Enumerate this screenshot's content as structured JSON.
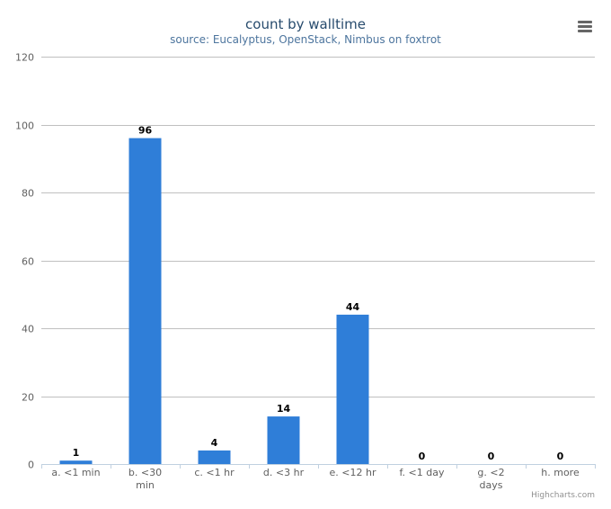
{
  "chart_data": {
    "type": "bar",
    "title": "count by walltime",
    "subtitle": "source: Eucalyptus, OpenStack, Nimbus on foxtrot",
    "categories": [
      "a. <1 min",
      "b. <30 min",
      "c. <1 hr",
      "d. <3 hr",
      "e. <12 hr",
      "f. <1 day",
      "g. <2 days",
      "h. more"
    ],
    "category_lines": [
      [
        "a. <1 min"
      ],
      [
        "b. <30",
        "min"
      ],
      [
        "c. <1 hr"
      ],
      [
        "d. <3 hr"
      ],
      [
        "e. <12 hr"
      ],
      [
        "f. <1 day"
      ],
      [
        "g. <2",
        "days"
      ],
      [
        "h. more"
      ]
    ],
    "values": [
      1,
      96,
      4,
      14,
      44,
      0,
      0,
      0
    ],
    "ylim": [
      0,
      120
    ],
    "yticks": [
      0,
      20,
      40,
      60,
      80,
      100,
      120
    ],
    "grid": true,
    "legend": "none",
    "xlabel": "",
    "ylabel": ""
  },
  "colors": {
    "bar": "#2f7ed8",
    "grid": "#c0c0c0",
    "axis": "#c0d0e0",
    "title": "#274b6d",
    "subtitle": "#4d759e",
    "menu": "#666666"
  },
  "menu_icon": "hamburger-menu-icon",
  "credits": "Highcharts.com"
}
